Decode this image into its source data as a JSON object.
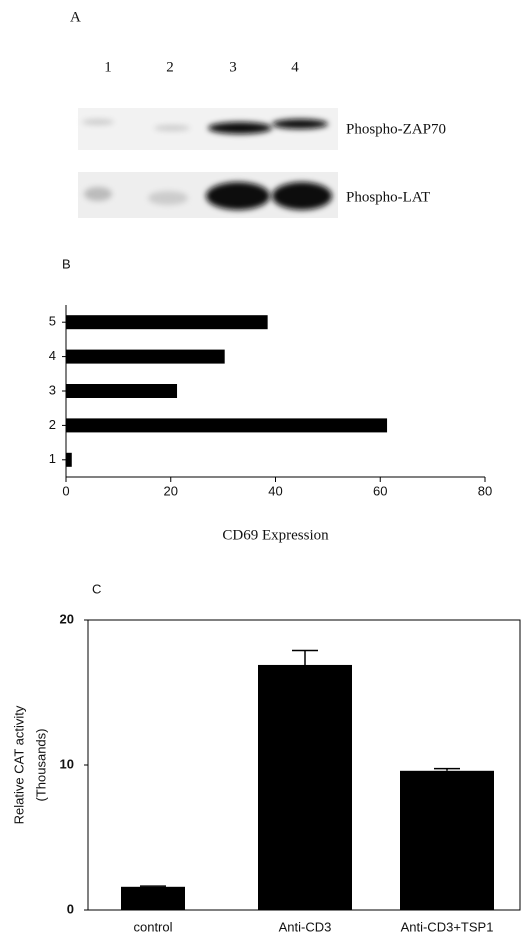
{
  "blot": {
    "panel_label": "A",
    "lanes": [
      "1",
      "2",
      "3",
      "4"
    ],
    "rows": [
      "Phospho-ZAP70",
      "Phospho-LAT"
    ]
  },
  "chart_data": [
    {
      "type": "bar",
      "orientation": "horizontal",
      "panel_label": "B",
      "x_label": "CD69 Expression",
      "categories": [
        "1",
        "2",
        "3",
        "4",
        "5"
      ],
      "values": [
        1.1,
        61.3,
        21.2,
        30.3,
        38.5
      ],
      "color": "#000000",
      "xlim": [
        0,
        80
      ],
      "xticks": [
        0,
        20,
        40,
        60,
        80
      ]
    },
    {
      "type": "bar",
      "orientation": "vertical",
      "panel_label": "C",
      "y_label": "Relative CAT activity",
      "y_sublabel": "(Thousands)",
      "categories": [
        "control",
        "Anti-CD3",
        "Anti-CD3+TSP1"
      ],
      "values": [
        1.6,
        16.9,
        9.6
      ],
      "errors": [
        0.05,
        1.0,
        0.15
      ],
      "color": "#000000",
      "ylim": [
        0,
        20
      ],
      "yticks": [
        0,
        10,
        20
      ]
    }
  ]
}
